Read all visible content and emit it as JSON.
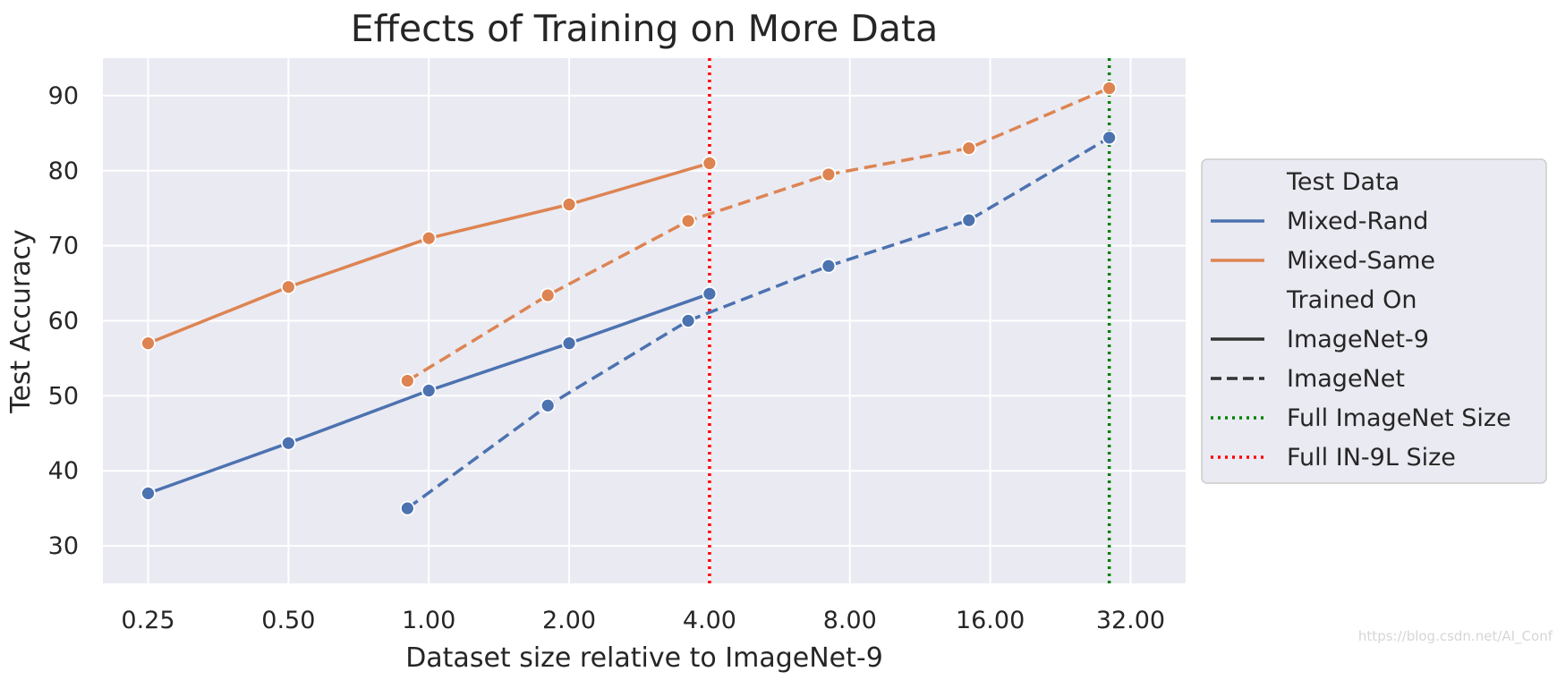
{
  "chart_data": {
    "type": "line",
    "title": "Effects of Training on More Data",
    "xlabel": "Dataset size relative to ImageNet-9",
    "ylabel": "Test Accuracy",
    "x_scale": "log2",
    "xlim": [
      0.2,
      42
    ],
    "ylim": [
      25,
      95
    ],
    "x_ticks": [
      0.25,
      0.5,
      1,
      2,
      4,
      8,
      16,
      32
    ],
    "x_tick_labels": [
      "0.25",
      "0.50",
      "1.00",
      "2.00",
      "4.00",
      "8.00",
      "16.00",
      "32.00"
    ],
    "y_ticks": [
      30,
      40,
      50,
      60,
      70,
      80,
      90
    ],
    "y_tick_labels": [
      "30",
      "40",
      "50",
      "60",
      "70",
      "80",
      "90"
    ],
    "grid": true,
    "colors": {
      "mixed_rand": "#4c72b0",
      "mixed_same": "#dd8452",
      "full_imagenet": "#008000",
      "full_in9l": "#ff0000",
      "background": "#eaeaf2"
    },
    "series": [
      {
        "test_data": "Mixed-Rand",
        "trained_on": "ImageNet-9",
        "style": "solid",
        "color": "#4c72b0",
        "x": [
          0.25,
          0.5,
          1,
          2,
          4
        ],
        "y": [
          37,
          43.7,
          50.7,
          57,
          63.6
        ]
      },
      {
        "test_data": "Mixed-Same",
        "trained_on": "ImageNet-9",
        "style": "solid",
        "color": "#dd8452",
        "x": [
          0.25,
          0.5,
          1,
          2,
          4
        ],
        "y": [
          57,
          64.5,
          71,
          75.5,
          81
        ]
      },
      {
        "test_data": "Mixed-Rand",
        "trained_on": "ImageNet",
        "style": "dashed",
        "color": "#4c72b0",
        "x": [
          0.9,
          1.8,
          3.6,
          7.2,
          14.4,
          28.8
        ],
        "y": [
          35,
          48.7,
          60,
          67.3,
          73.4,
          84.4
        ]
      },
      {
        "test_data": "Mixed-Same",
        "trained_on": "ImageNet",
        "style": "dashed",
        "color": "#dd8452",
        "x": [
          0.9,
          1.8,
          3.6,
          7.2,
          14.4,
          28.8
        ],
        "y": [
          52,
          63.4,
          73.3,
          79.5,
          83,
          91
        ]
      }
    ],
    "reference_lines": [
      {
        "name": "Full ImageNet Size",
        "x": 28.8,
        "style": "dotted",
        "color": "#008000"
      },
      {
        "name": "Full IN-9L Size",
        "x": 4,
        "style": "dotted",
        "color": "#ff0000"
      }
    ],
    "legend": {
      "placement": "right",
      "entries": [
        {
          "label": "Test Data",
          "kind": "header"
        },
        {
          "label": "Mixed-Rand",
          "kind": "line",
          "color": "#4c72b0",
          "style": "solid"
        },
        {
          "label": "Mixed-Same",
          "kind": "line",
          "color": "#dd8452",
          "style": "solid"
        },
        {
          "label": "Trained On",
          "kind": "header"
        },
        {
          "label": "ImageNet-9",
          "kind": "line",
          "color": "#333333",
          "style": "solid"
        },
        {
          "label": "ImageNet",
          "kind": "line",
          "color": "#333333",
          "style": "dashed"
        },
        {
          "label": "Full ImageNet Size",
          "kind": "line",
          "color": "#008000",
          "style": "dotted"
        },
        {
          "label": "Full IN-9L Size",
          "kind": "line",
          "color": "#ff0000",
          "style": "dotted"
        }
      ]
    }
  },
  "watermark": "https://blog.csdn.net/AI_Conf"
}
